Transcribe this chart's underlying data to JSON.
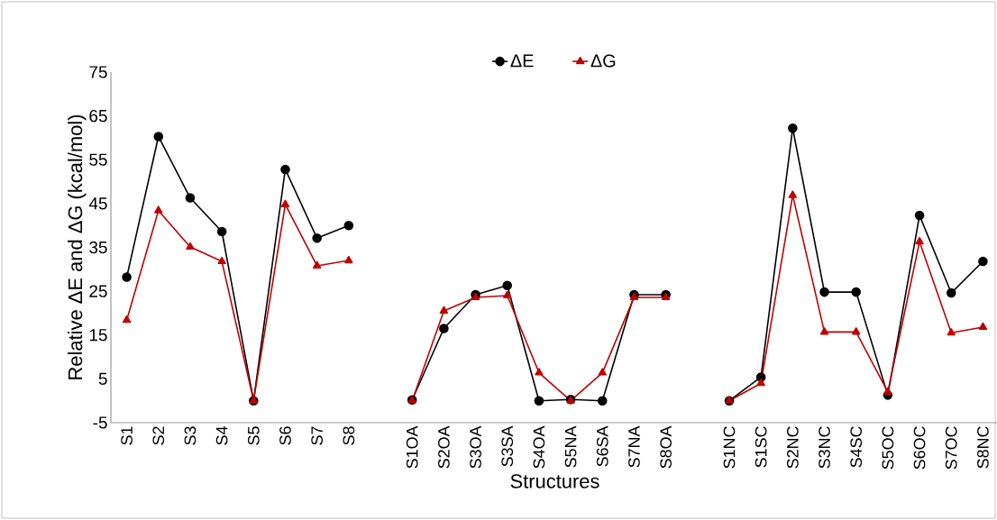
{
  "chart_data": {
    "type": "line",
    "xlabel": "Structures",
    "ylabel": "Relative ΔE  and ΔG  (kcal/mol)",
    "categories": [
      "S1",
      "S2",
      "S3",
      "S4",
      "S5",
      "S6",
      "S7",
      "S8",
      null,
      "S1OA",
      "S2OA",
      "S3OA",
      "S3SA",
      "S4OA",
      "S5NA",
      "S6SA",
      "S7NA",
      "S8OA",
      null,
      "S1NC",
      "S1SC",
      "S2NC",
      "S3NC",
      "S4SC",
      "S5OC",
      "S6OC",
      "S7OC",
      "S8NC"
    ],
    "series": [
      {
        "name": "ΔE",
        "color": "#000000",
        "marker": "circle",
        "values": [
          28.2,
          60.3,
          46.3,
          38.6,
          0,
          52.8,
          37.1,
          40.0,
          null,
          0.2,
          16.5,
          24.2,
          26.3,
          0,
          0.3,
          0,
          24.2,
          24.2,
          null,
          0,
          5.4,
          62.2,
          24.8,
          24.8,
          1.3,
          42.3,
          24.6,
          31.8
        ]
      },
      {
        "name": "ΔG",
        "color": "#c00000",
        "marker": "triangle",
        "values": [
          18.4,
          43.4,
          35.1,
          31.8,
          0,
          44.8,
          30.8,
          32.0,
          null,
          0,
          20.5,
          23.6,
          24.0,
          6.4,
          0,
          6.4,
          23.6,
          23.6,
          null,
          0,
          4.0,
          46.9,
          15.7,
          15.7,
          2.0,
          36.3,
          15.5,
          16.8
        ]
      }
    ],
    "ylim": [
      -5,
      75
    ],
    "yticks": [
      -5,
      5,
      15,
      25,
      35,
      45,
      55,
      65,
      75
    ],
    "grid": false,
    "legend": "top"
  }
}
